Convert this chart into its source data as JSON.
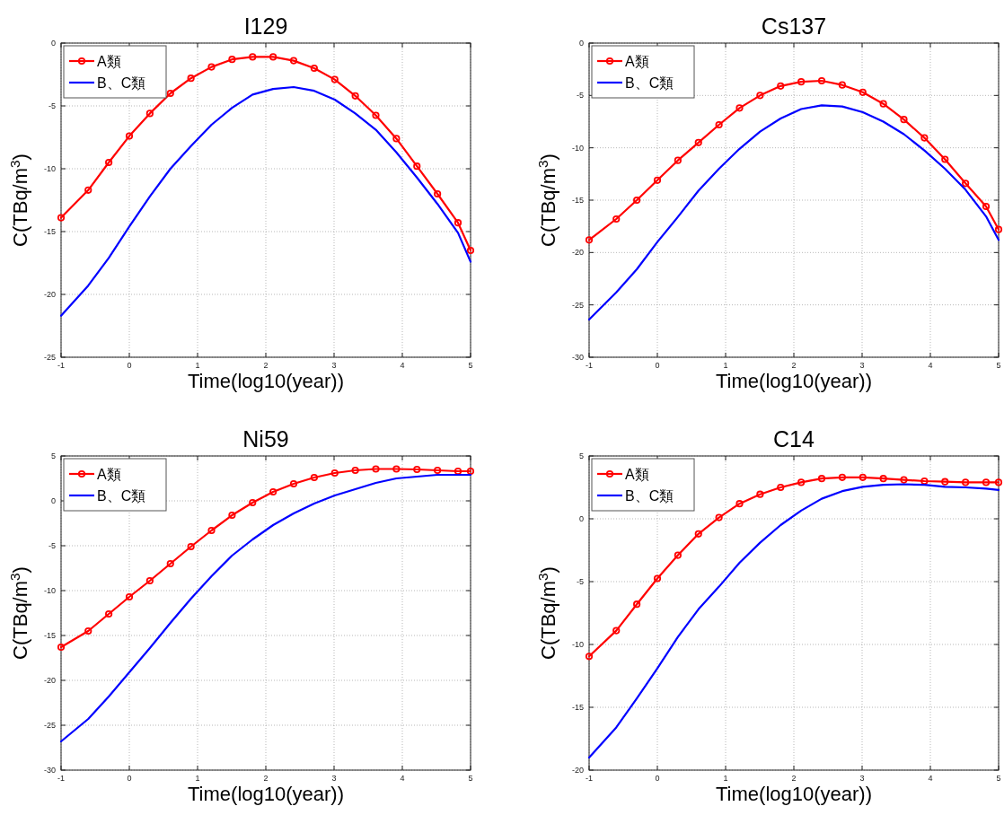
{
  "chart_data": [
    {
      "type": "line",
      "title": "I129",
      "xlabel": "Time(log10(year))",
      "ylabel": "C(TBq/m$^{3}$)",
      "x": [
        -1,
        -0.602,
        -0.301,
        0,
        0.301,
        0.602,
        0.903,
        1.204,
        1.505,
        1.806,
        2.107,
        2.408,
        2.709,
        3.01,
        3.311,
        3.612,
        3.913,
        4.214,
        4.515,
        4.816,
        5
      ],
      "xlim": [
        -1,
        5
      ],
      "xticks": [
        -1,
        0,
        1,
        2,
        3,
        4,
        5
      ],
      "ylim": [
        -25,
        0
      ],
      "yticks": [
        -25,
        -20,
        -15,
        -10,
        -5,
        0
      ],
      "grid": true,
      "legend": "top left",
      "series": [
        {
          "name": "A類",
          "color": "#ff0000",
          "marker": "circle",
          "values": [
            -13.9,
            -11.7,
            -9.5,
            -7.4,
            -5.6,
            -4.0,
            -2.8,
            -1.9,
            -1.3,
            -1.1,
            -1.1,
            -1.4,
            -2.0,
            -2.9,
            -4.2,
            -5.75,
            -7.6,
            -9.8,
            -12.0,
            -14.3,
            -16.5
          ]
        },
        {
          "name": "B、C類",
          "color": "#0000ff",
          "marker": "none",
          "values": [
            -21.7,
            -19.3,
            -17.1,
            -14.6,
            -12.2,
            -10.0,
            -8.2,
            -6.5,
            -5.15,
            -4.1,
            -3.65,
            -3.5,
            -3.8,
            -4.5,
            -5.6,
            -6.9,
            -8.7,
            -10.7,
            -12.8,
            -15.1,
            -17.4
          ]
        }
      ]
    },
    {
      "type": "line",
      "title": "Cs137",
      "xlabel": "Time(log10(year))",
      "ylabel": "C(TBq/m$^{3}$)",
      "x": [
        -1,
        -0.602,
        -0.301,
        0,
        0.301,
        0.602,
        0.903,
        1.204,
        1.505,
        1.806,
        2.107,
        2.408,
        2.709,
        3.01,
        3.311,
        3.612,
        3.913,
        4.214,
        4.515,
        4.816,
        5
      ],
      "xlim": [
        -1,
        5
      ],
      "xticks": [
        -1,
        0,
        1,
        2,
        3,
        4,
        5
      ],
      "ylim": [
        -30,
        0
      ],
      "yticks": [
        -30,
        -25,
        -20,
        -15,
        -10,
        -5,
        0
      ],
      "grid": true,
      "legend": "top left",
      "series": [
        {
          "name": "A類",
          "color": "#ff0000",
          "marker": "circle",
          "values": [
            -18.8,
            -16.8,
            -15.0,
            -13.1,
            -11.2,
            -9.5,
            -7.8,
            -6.2,
            -5.0,
            -4.1,
            -3.7,
            -3.6,
            -4.0,
            -4.7,
            -5.8,
            -7.3,
            -9.05,
            -11.1,
            -13.4,
            -15.6,
            -17.8
          ]
        },
        {
          "name": "B、C類",
          "color": "#0000ff",
          "marker": "none",
          "values": [
            -26.4,
            -23.8,
            -21.6,
            -19.0,
            -16.6,
            -14.1,
            -12.0,
            -10.1,
            -8.45,
            -7.2,
            -6.3,
            -5.95,
            -6.05,
            -6.6,
            -7.5,
            -8.7,
            -10.25,
            -12.0,
            -14.0,
            -16.55,
            -18.8
          ]
        }
      ]
    },
    {
      "type": "line",
      "title": "Ni59",
      "xlabel": "Time(log10(year))",
      "ylabel": "C(TBq/m$^{3}$)",
      "x": [
        -1,
        -0.602,
        -0.301,
        0,
        0.301,
        0.602,
        0.903,
        1.204,
        1.505,
        1.806,
        2.107,
        2.408,
        2.709,
        3.01,
        3.311,
        3.612,
        3.913,
        4.214,
        4.515,
        4.816,
        5
      ],
      "xlim": [
        -1,
        5
      ],
      "xticks": [
        -1,
        0,
        1,
        2,
        3,
        4,
        5
      ],
      "ylim": [
        -30,
        5
      ],
      "yticks": [
        -30,
        -25,
        -20,
        -15,
        -10,
        -5,
        0,
        5
      ],
      "grid": true,
      "legend": "top left",
      "series": [
        {
          "name": "A類",
          "color": "#ff0000",
          "marker": "circle",
          "values": [
            -16.3,
            -14.5,
            -12.6,
            -10.7,
            -8.9,
            -7.0,
            -5.1,
            -3.3,
            -1.6,
            -0.2,
            1.0,
            1.9,
            2.6,
            3.1,
            3.4,
            3.55,
            3.55,
            3.5,
            3.4,
            3.3,
            3.3
          ]
        },
        {
          "name": "B、C類",
          "color": "#0000ff",
          "marker": "none",
          "values": [
            -26.8,
            -24.3,
            -21.8,
            -19.1,
            -16.4,
            -13.6,
            -10.9,
            -8.4,
            -6.1,
            -4.3,
            -2.7,
            -1.4,
            -0.3,
            0.6,
            1.3,
            2.0,
            2.5,
            2.7,
            2.9,
            2.9,
            2.9
          ]
        }
      ]
    },
    {
      "type": "line",
      "title": "C14",
      "xlabel": "Time(log10(year))",
      "ylabel": "C(TBq/m$^{3}$)",
      "x": [
        -1,
        -0.602,
        -0.301,
        0,
        0.301,
        0.602,
        0.903,
        1.204,
        1.505,
        1.806,
        2.107,
        2.408,
        2.709,
        3.01,
        3.311,
        3.612,
        3.913,
        4.214,
        4.515,
        4.816,
        5
      ],
      "xlim": [
        -1,
        5
      ],
      "xticks": [
        -1,
        0,
        1,
        2,
        3,
        4,
        5
      ],
      "ylim": [
        -20,
        5
      ],
      "yticks": [
        -20,
        -15,
        -10,
        -5,
        0,
        5
      ],
      "grid": true,
      "legend": "top left",
      "series": [
        {
          "name": "A類",
          "color": "#ff0000",
          "marker": "circle",
          "values": [
            -10.95,
            -8.9,
            -6.8,
            -4.75,
            -2.9,
            -1.2,
            0.1,
            1.2,
            1.95,
            2.5,
            2.9,
            3.2,
            3.3,
            3.3,
            3.2,
            3.1,
            3.0,
            2.95,
            2.9,
            2.9,
            2.9
          ]
        },
        {
          "name": "B、C類",
          "color": "#0000ff",
          "marker": "none",
          "values": [
            -19.0,
            -16.6,
            -14.3,
            -11.9,
            -9.4,
            -7.2,
            -5.4,
            -3.5,
            -1.9,
            -0.5,
            0.65,
            1.6,
            2.2,
            2.55,
            2.7,
            2.75,
            2.7,
            2.55,
            2.5,
            2.4,
            2.3
          ]
        }
      ]
    }
  ]
}
